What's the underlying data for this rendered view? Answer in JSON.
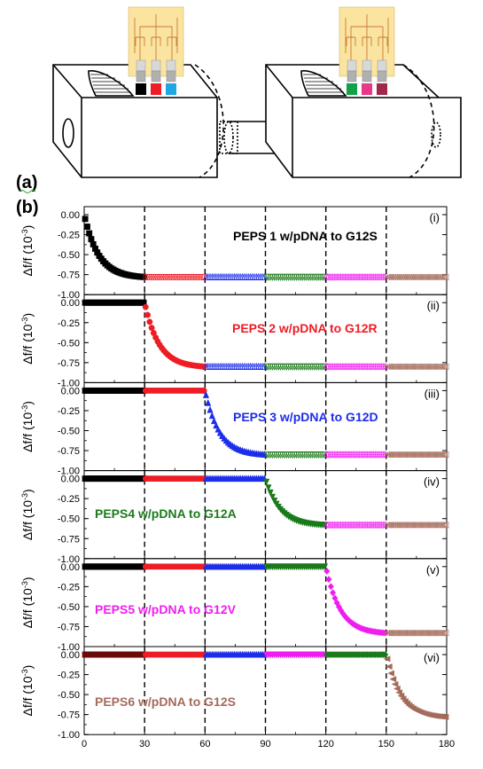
{
  "figure_labels": {
    "a": "(a)",
    "b": "(b)"
  },
  "colors": {
    "black": "#000000",
    "red": "#ee1c25",
    "blue": "#1d2ee8",
    "green": "#1a7a1a",
    "magenta": "#f01cf0",
    "brown": "#a46a5a",
    "cyan": "#1ea7e3",
    "emerald": "#12a04a",
    "pink": "#e8388a",
    "maroon": "#a0284a",
    "dark_red": "#6a0a0a",
    "chip": "#fbe4a0"
  },
  "y_axis_label": {
    "main": "Δf/f (10",
    "exp": "-3",
    "close": ")"
  },
  "chart_data": [
    {
      "type": "scatter",
      "panel": "(i)",
      "title": "PEPS 1 w/pDNA to G12S",
      "title_color": "#000000",
      "ylim": [
        -1.0,
        0.1
      ],
      "yticks": [
        "0.00",
        "-0.25",
        "-0.50",
        "-0.75",
        "-1.00"
      ],
      "y_tick_values": [
        0,
        -0.25,
        -0.5,
        -0.75,
        -1.0
      ],
      "xlim": [
        0,
        180
      ],
      "vlines": [
        30,
        60,
        90,
        120,
        150
      ],
      "drop_start": 0,
      "drop_end": 30,
      "final": -0.78,
      "segments": [
        {
          "from": 0,
          "to": 30,
          "color": "#000000",
          "marker": "square"
        },
        {
          "from": 30,
          "to": 60,
          "color": "#ee1c25",
          "marker": "circle"
        },
        {
          "from": 60,
          "to": 90,
          "color": "#1d2ee8",
          "marker": "triangle-up"
        },
        {
          "from": 90,
          "to": 120,
          "color": "#1a7a1a",
          "marker": "triangle-down"
        },
        {
          "from": 120,
          "to": 150,
          "color": "#f01cf0",
          "marker": "diamond"
        },
        {
          "from": 150,
          "to": 180,
          "color": "#a46a5a",
          "marker": "triangle-left"
        }
      ]
    },
    {
      "type": "scatter",
      "panel": "(ii)",
      "title": "PEPS 2 w/pDNA to G12R",
      "title_color": "#ee1c25",
      "ylim": [
        -1.0,
        0.1
      ],
      "yticks": [
        "0.00",
        "-0.25",
        "-0.50",
        "-0.75",
        "-1.00"
      ],
      "y_tick_values": [
        0,
        -0.25,
        -0.5,
        -0.75,
        -1.0
      ],
      "xlim": [
        0,
        180
      ],
      "vlines": [
        30,
        60,
        90,
        120,
        150
      ],
      "drop_start": 30,
      "drop_end": 60,
      "final": -0.8,
      "segments": [
        {
          "from": 0,
          "to": 30,
          "color": "#000000",
          "marker": "square"
        },
        {
          "from": 30,
          "to": 60,
          "color": "#ee1c25",
          "marker": "circle"
        },
        {
          "from": 60,
          "to": 90,
          "color": "#1d2ee8",
          "marker": "triangle-up"
        },
        {
          "from": 90,
          "to": 120,
          "color": "#1a7a1a",
          "marker": "triangle-down"
        },
        {
          "from": 120,
          "to": 150,
          "color": "#f01cf0",
          "marker": "diamond"
        },
        {
          "from": 150,
          "to": 180,
          "color": "#a46a5a",
          "marker": "triangle-left"
        }
      ]
    },
    {
      "type": "scatter",
      "panel": "(iii)",
      "title": "PEPS 3 w/pDNA to G12D",
      "title_color": "#1d2ee8",
      "ylim": [
        -1.0,
        0.1
      ],
      "yticks": [
        "0.00",
        "-0.25",
        "-0.50",
        "-0.75",
        "-1.00"
      ],
      "y_tick_values": [
        0,
        -0.25,
        -0.5,
        -0.75,
        -1.0
      ],
      "xlim": [
        0,
        180
      ],
      "vlines": [
        30,
        60,
        90,
        120,
        150
      ],
      "drop_start": 60,
      "drop_end": 90,
      "final": -0.8,
      "segments": [
        {
          "from": 0,
          "to": 30,
          "color": "#000000",
          "marker": "square"
        },
        {
          "from": 30,
          "to": 60,
          "color": "#ee1c25",
          "marker": "circle"
        },
        {
          "from": 60,
          "to": 90,
          "color": "#1d2ee8",
          "marker": "triangle-up"
        },
        {
          "from": 90,
          "to": 120,
          "color": "#1a7a1a",
          "marker": "triangle-down"
        },
        {
          "from": 120,
          "to": 150,
          "color": "#f01cf0",
          "marker": "diamond"
        },
        {
          "from": 150,
          "to": 180,
          "color": "#a46a5a",
          "marker": "triangle-left"
        }
      ]
    },
    {
      "type": "scatter",
      "panel": "(iv)",
      "title": "PEPS4 w/pDNA to G12A",
      "title_color": "#1a7a1a",
      "ylim": [
        -1.0,
        0.1
      ],
      "yticks": [
        "0.00",
        "-0.25",
        "-0.50",
        "-0.75",
        "-1.00"
      ],
      "y_tick_values": [
        0,
        -0.25,
        -0.5,
        -0.75,
        -1.0
      ],
      "xlim": [
        0,
        180
      ],
      "vlines": [
        30,
        60,
        90,
        120,
        150
      ],
      "drop_start": 90,
      "drop_end": 120,
      "final": -0.58,
      "segments": [
        {
          "from": 0,
          "to": 30,
          "color": "#000000",
          "marker": "square"
        },
        {
          "from": 30,
          "to": 60,
          "color": "#ee1c25",
          "marker": "circle"
        },
        {
          "from": 60,
          "to": 90,
          "color": "#1d2ee8",
          "marker": "triangle-up"
        },
        {
          "from": 90,
          "to": 120,
          "color": "#1a7a1a",
          "marker": "triangle-down"
        },
        {
          "from": 120,
          "to": 150,
          "color": "#f01cf0",
          "marker": "diamond"
        },
        {
          "from": 150,
          "to": 180,
          "color": "#a46a5a",
          "marker": "triangle-left"
        }
      ]
    },
    {
      "type": "scatter",
      "panel": "(v)",
      "title": "PEPS5 w/pDNA to G12V",
      "title_color": "#f01cf0",
      "ylim": [
        -1.0,
        0.1
      ],
      "yticks": [
        "0.00",
        "-0.25",
        "-0.50",
        "-0.75",
        "-1.00"
      ],
      "y_tick_values": [
        0,
        -0.25,
        -0.5,
        -0.75,
        -1.0
      ],
      "xlim": [
        0,
        180
      ],
      "vlines": [
        30,
        60,
        90,
        120,
        150
      ],
      "drop_start": 120,
      "drop_end": 150,
      "final": -0.83,
      "segments": [
        {
          "from": 0,
          "to": 30,
          "color": "#000000",
          "marker": "square"
        },
        {
          "from": 30,
          "to": 60,
          "color": "#ee1c25",
          "marker": "circle"
        },
        {
          "from": 60,
          "to": 90,
          "color": "#1d2ee8",
          "marker": "triangle-up"
        },
        {
          "from": 90,
          "to": 120,
          "color": "#1a7a1a",
          "marker": "triangle-down"
        },
        {
          "from": 120,
          "to": 150,
          "color": "#f01cf0",
          "marker": "diamond"
        },
        {
          "from": 150,
          "to": 180,
          "color": "#a46a5a",
          "marker": "triangle-left"
        }
      ]
    },
    {
      "type": "scatter",
      "panel": "(vi)",
      "title": "PEPS6 w/pDNA to G12S",
      "title_color": "#a46a5a",
      "ylim": [
        -1.0,
        0.1
      ],
      "yticks": [
        "0.00",
        "-0.25",
        "-0.50",
        "-0.75",
        "-1.00"
      ],
      "y_tick_values": [
        0,
        -0.25,
        -0.5,
        -0.75,
        -1.0
      ],
      "xlim": [
        0,
        180
      ],
      "xticks": [
        "0",
        "30",
        "60",
        "90",
        "120",
        "150",
        "180"
      ],
      "x_tick_values": [
        0,
        30,
        60,
        90,
        120,
        150,
        180
      ],
      "vlines": [
        30,
        60,
        90,
        120,
        150
      ],
      "drop_start": 150,
      "drop_end": 180,
      "final": -0.78,
      "segments": [
        {
          "from": 0,
          "to": 30,
          "color": "#6a0a0a",
          "marker": "square"
        },
        {
          "from": 30,
          "to": 60,
          "color": "#ee1c25",
          "marker": "circle"
        },
        {
          "from": 60,
          "to": 90,
          "color": "#1d2ee8",
          "marker": "triangle-up"
        },
        {
          "from": 90,
          "to": 120,
          "color": "#f01cf0",
          "marker": "triangle-down"
        },
        {
          "from": 120,
          "to": 150,
          "color": "#1a7a1a",
          "marker": "diamond"
        },
        {
          "from": 150,
          "to": 180,
          "color": "#a46a5a",
          "marker": "triangle-left"
        }
      ]
    }
  ],
  "schematic": {
    "chip1_wires": [
      "#000000",
      "#ee1c25",
      "#1ea7e3"
    ],
    "chip2_wires": [
      "#12a04a",
      "#e8388a",
      "#a0284a"
    ]
  }
}
